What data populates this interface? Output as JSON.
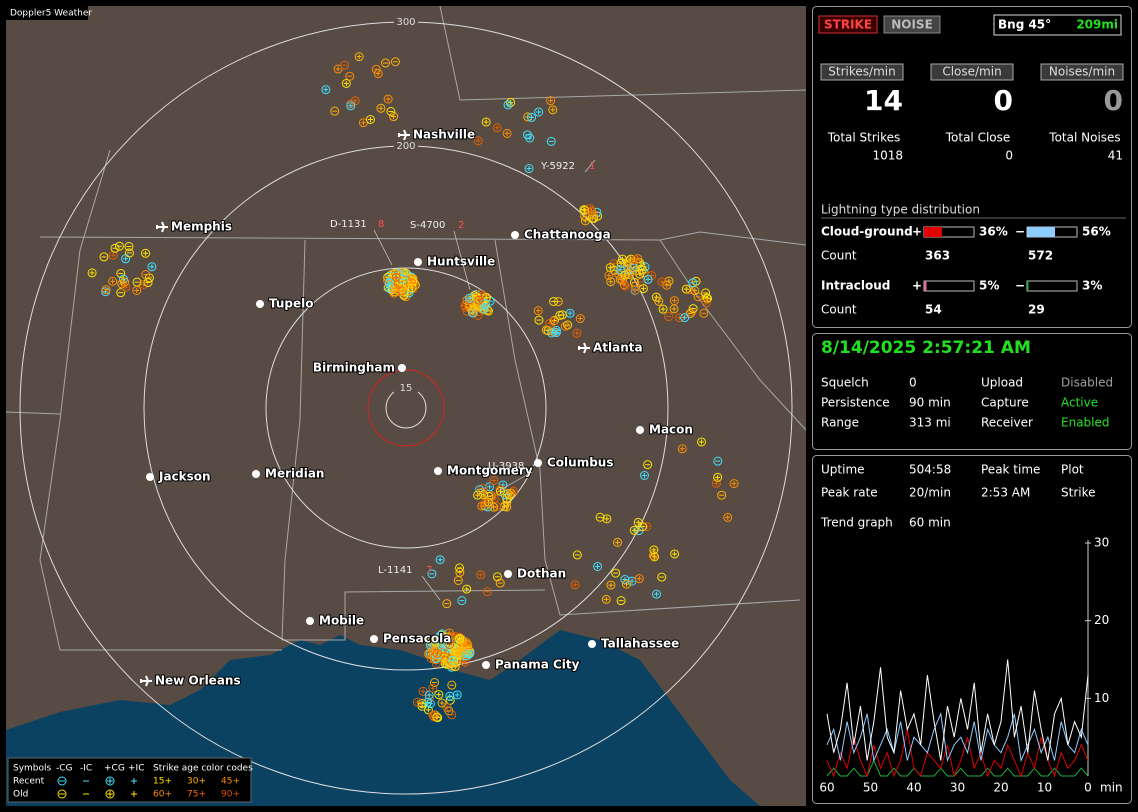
{
  "map": {
    "title": "Doppler5 Weather",
    "rings": [
      "300",
      "200",
      "15"
    ],
    "cities": [
      "Nashville",
      "Memphis",
      "Huntsville",
      "Chattanooga",
      "Tupelo",
      "Birmingham",
      "Atlanta",
      "Macon",
      "Jackson",
      "Meridian",
      "Montgomery",
      "Columbus",
      "Dothan",
      "Mobile",
      "Pensacola",
      "Panama City",
      "Tallahassee",
      "New Orleans"
    ],
    "storms": [
      {
        "id": "Y-5922",
        "count": "1"
      },
      {
        "id": "D-1131",
        "count": "8"
      },
      {
        "id": "S-4700",
        "count": "2"
      },
      {
        "id": "U-3938",
        "count": ""
      },
      {
        "id": "L-1141",
        "count": "7"
      }
    ],
    "legend": {
      "symbols_label": "Symbols",
      "headers": [
        "-CG",
        "-IC",
        "+CG",
        "+IC"
      ],
      "age_label": "Strike age color codes",
      "rows": [
        {
          "label": "Recent",
          "ages": [
            "15+",
            "30+",
            "45+"
          ]
        },
        {
          "label": "Old",
          "ages": [
            "60+",
            "75+",
            "90+"
          ]
        }
      ]
    }
  },
  "status": {
    "strike": "STRIKE",
    "noise": "NOISE",
    "bearing": "Bng 45°",
    "distance": "209mi"
  },
  "rates": [
    {
      "label": "Strikes/min",
      "value": 14
    },
    {
      "label": "Close/min",
      "value": 0
    },
    {
      "label": "Noises/min",
      "value": 0
    }
  ],
  "totals": [
    {
      "label": "Total Strikes",
      "value": 1018
    },
    {
      "label": "Total Close",
      "value": 0
    },
    {
      "label": "Total Noises",
      "value": 41
    }
  ],
  "distribution": {
    "title": "Lightning type distribution",
    "count_label": "Count",
    "types": [
      {
        "label": "Cloud-ground",
        "pos": {
          "sign": "+",
          "pct": 36,
          "pct_label": "36%",
          "count": 363,
          "color": "#e00000"
        },
        "neg": {
          "sign": "−",
          "pct": 56,
          "pct_label": "56%",
          "count": 572,
          "color": "#8ecbff"
        }
      },
      {
        "label": "Intracloud",
        "pos": {
          "sign": "+",
          "pct": 5,
          "pct_label": "5%",
          "count": 54,
          "color": "#e070a0"
        },
        "neg": {
          "sign": "−",
          "pct": 3,
          "pct_label": "3%",
          "count": 29,
          "color": "#20b040"
        }
      }
    ]
  },
  "clock": "8/14/2025 2:57:21 AM",
  "settings": [
    {
      "label": "Squelch",
      "value": "0"
    },
    {
      "label": "Persistence",
      "value": "90 min"
    },
    {
      "label": "Range",
      "value": "313 mi"
    },
    {
      "label": "Upload",
      "value": "Disabled",
      "color": "#a0a0a0"
    },
    {
      "label": "Capture",
      "value": "Active",
      "color": "#20e020"
    },
    {
      "label": "Receiver",
      "value": "Enabled",
      "color": "#20e020"
    }
  ],
  "stats": {
    "uptime": {
      "label": "Uptime",
      "value": "504:58"
    },
    "peak_time": {
      "label": "Peak time",
      "value": "2:53 AM"
    },
    "plot": {
      "label": "Plot",
      "value": "Strike"
    },
    "peak_rate": {
      "label": "Peak rate",
      "value": "20/min"
    },
    "trend": {
      "label": "Trend graph",
      "value": "60 min"
    }
  },
  "trend_graph": {
    "ylim": [
      0,
      30
    ],
    "yticks": [
      30,
      20,
      10
    ],
    "xlim": [
      60,
      0
    ],
    "xticks": [
      60,
      50,
      40,
      30,
      20,
      10,
      0
    ],
    "x_unit": "min",
    "series": [
      {
        "color": "#ffffff",
        "values": [
          8,
          3,
          6,
          12,
          4,
          9,
          2,
          7,
          14,
          5,
          3,
          11,
          6,
          8,
          4,
          13,
          7,
          2,
          9,
          5,
          10,
          6,
          12,
          3,
          8,
          4,
          7,
          15,
          5,
          9,
          3,
          11,
          6,
          2,
          8,
          10,
          4,
          7,
          5,
          13
        ]
      },
      {
        "color": "#8ecbff",
        "values": [
          4,
          6,
          2,
          7,
          3,
          5,
          8,
          2,
          4,
          6,
          3,
          7,
          2,
          5,
          4,
          3,
          6,
          8,
          2,
          4,
          5,
          3,
          7,
          2,
          6,
          4,
          3,
          5,
          8,
          2,
          4,
          6,
          3,
          5,
          2,
          7,
          4,
          3,
          6,
          4
        ]
      },
      {
        "color": "#e00000",
        "values": [
          2,
          0,
          3,
          1,
          5,
          2,
          0,
          4,
          1,
          3,
          0,
          2,
          6,
          1,
          0,
          3,
          2,
          1,
          4,
          0,
          2,
          5,
          1,
          3,
          0,
          2,
          1,
          4,
          2,
          0,
          3,
          1,
          5,
          2,
          0,
          3,
          1,
          2,
          4,
          2
        ]
      },
      {
        "color": "#20b040",
        "values": [
          0,
          1,
          0,
          0,
          1,
          0,
          0,
          2,
          0,
          0,
          1,
          0,
          0,
          1,
          0,
          0,
          0,
          1,
          0,
          0,
          1,
          0,
          0,
          0,
          1,
          0,
          0,
          1,
          0,
          0,
          0,
          1,
          0,
          0,
          1,
          0,
          0,
          0,
          1,
          0
        ]
      }
    ]
  }
}
